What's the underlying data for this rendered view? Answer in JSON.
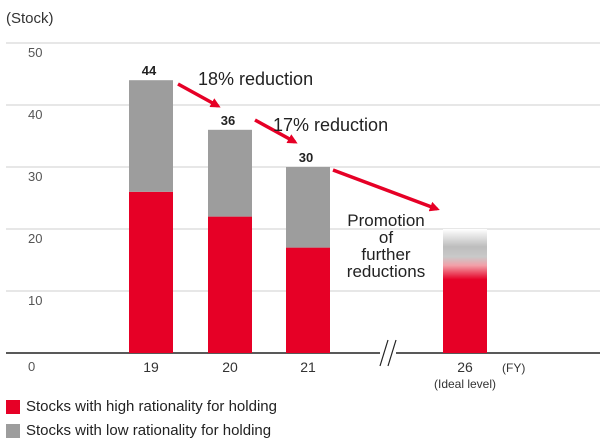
{
  "chart_data": {
    "type": "bar",
    "stacked": true,
    "unit_label": "(Stock)",
    "x_unit": "(FY)",
    "ylim": [
      0,
      50
    ],
    "yticks": [
      0,
      10,
      20,
      30,
      40,
      50
    ],
    "grid": true,
    "categories": [
      "19",
      "20",
      "21",
      "26"
    ],
    "category_sublabels": [
      "",
      "",
      "",
      "(Ideal level)"
    ],
    "totals": [
      "44",
      "36",
      "30",
      ""
    ],
    "series": [
      {
        "name": "Stocks with high rationality for holding",
        "values": [
          26,
          22,
          17,
          12
        ],
        "color": "#e60026"
      },
      {
        "name": "Stocks with low rationality for holding",
        "values": [
          18,
          14,
          13,
          8
        ],
        "color": "#9d9d9d"
      }
    ],
    "annotations": [
      {
        "text": "18% reduction"
      },
      {
        "text": "17% reduction"
      },
      {
        "text": "Promotion of further reductions"
      }
    ],
    "legend_position": "bottom-left"
  }
}
